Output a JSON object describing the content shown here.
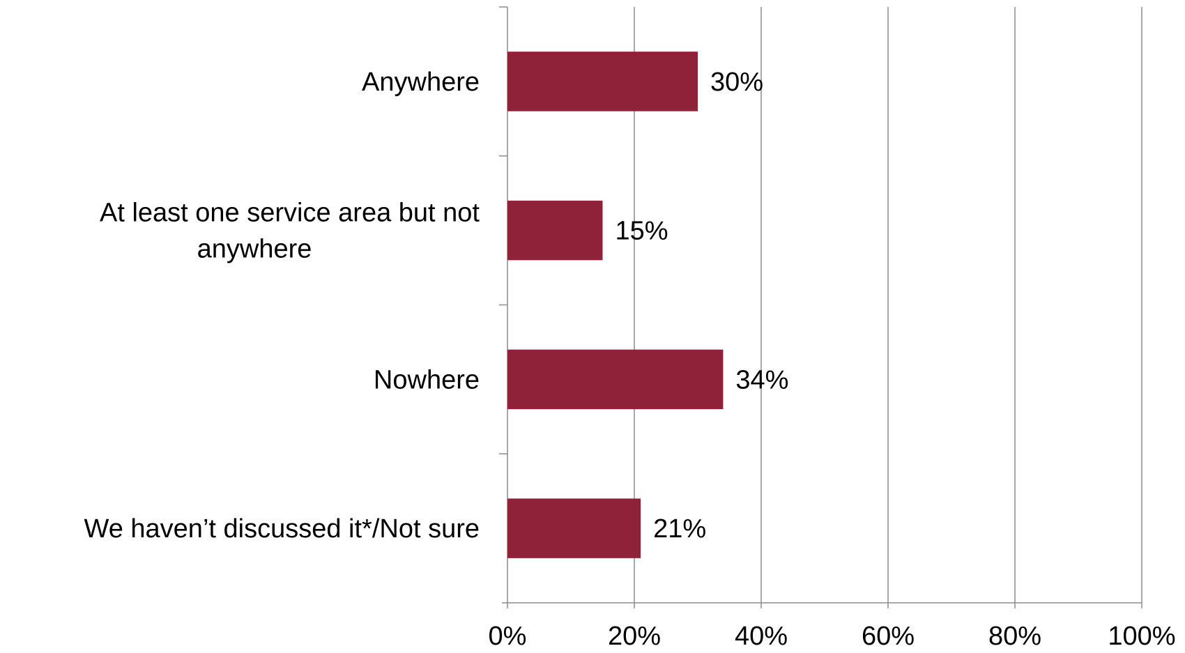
{
  "chart_data": {
    "type": "bar",
    "orientation": "horizontal",
    "categories": [
      [
        "Anywhere"
      ],
      [
        "At least one service area but not",
        "anywhere"
      ],
      [
        "Nowhere"
      ],
      [
        "We haven’t discussed it*/Not sure"
      ]
    ],
    "values": [
      30,
      15,
      34,
      21
    ],
    "data_labels": [
      "30%",
      "15%",
      "34%",
      "21%"
    ],
    "x_ticks": [
      "0%",
      "20%",
      "40%",
      "60%",
      "80%",
      "100%"
    ],
    "xlim": [
      0,
      100
    ],
    "grid": "vertical",
    "bar_color": "#8f2238",
    "title": "",
    "xlabel": "",
    "ylabel": ""
  }
}
